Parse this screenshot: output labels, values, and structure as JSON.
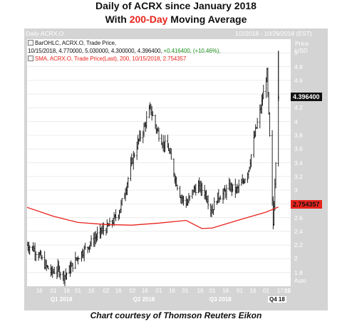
{
  "title_line1": "Daily of ACRX since January 2018",
  "title_line2_pre": "With ",
  "title_line2_accent": "200-Day",
  "title_line2_post": " Moving Average",
  "header_left": "Daily ACRX.O",
  "header_right": "1/2/2018 - 10/29/2018 (EST)",
  "legend": {
    "bar_line": "BarOHLC, ACRX.O, Trade Price,",
    "bar_values": "10/15/2018, 4.770000, 5.030000, 4.300000, 4.396400,",
    "bar_change": "+0.416400, (+10.46%),",
    "sma_line": "SMA, ACRX.O, Trade Price(Last), 200, 10/15/2018, 2.754357"
  },
  "price_unit": [
    "Price",
    "USD"
  ],
  "last_price_tag": "4.396400",
  "sma_tag": "2.754357",
  "auto_label": "Auto",
  "footer": "Chart courtesy of Thomson Reuters Eikon",
  "colors": {
    "accent": "#e8231c",
    "frame": "#d4d4d4",
    "sma": "#e8231c",
    "bars": "#111111"
  },
  "chart_data": {
    "type": "line",
    "series": [
      {
        "name": "BarOHLC, ACRX.O, Trade Price",
        "x": [
          "2018-01-02",
          "2018-01-09",
          "2018-01-16",
          "2018-01-23",
          "2018-01-30",
          "2018-02-06",
          "2018-02-13",
          "2018-02-20",
          "2018-02-27",
          "2018-03-06",
          "2018-03-13",
          "2018-03-20",
          "2018-03-27",
          "2018-04-03",
          "2018-04-10",
          "2018-04-17",
          "2018-04-24",
          "2018-05-01",
          "2018-05-08",
          "2018-05-15",
          "2018-05-22",
          "2018-05-29",
          "2018-06-05",
          "2018-06-12",
          "2018-06-19",
          "2018-06-26",
          "2018-07-03",
          "2018-07-10",
          "2018-07-17",
          "2018-07-24",
          "2018-07-31",
          "2018-08-07",
          "2018-08-14",
          "2018-08-21",
          "2018-08-28",
          "2018-09-04",
          "2018-09-11",
          "2018-09-18",
          "2018-09-25",
          "2018-10-02",
          "2018-10-09",
          "2018-10-15"
        ],
        "values": [
          2.2,
          2.15,
          2.05,
          1.9,
          1.8,
          1.85,
          1.75,
          1.85,
          2.0,
          2.1,
          2.2,
          2.3,
          2.4,
          2.45,
          2.55,
          2.7,
          3.0,
          3.4,
          3.7,
          3.9,
          4.2,
          3.9,
          3.7,
          3.6,
          3.2,
          2.9,
          2.8,
          3.0,
          3.05,
          2.95,
          2.7,
          2.9,
          2.95,
          3.05,
          3.0,
          3.1,
          3.3,
          3.8,
          4.2,
          4.7,
          2.5,
          4.3964
        ]
      },
      {
        "name": "SMA, ACRX.O, Trade Price(Last), 200",
        "x": [
          "2018-01-02",
          "2018-02-01",
          "2018-03-01",
          "2018-04-02",
          "2018-05-01",
          "2018-06-01",
          "2018-07-02",
          "2018-07-20",
          "2018-08-01",
          "2018-09-04",
          "2018-10-01",
          "2018-10-15"
        ],
        "values": [
          2.75,
          2.62,
          2.53,
          2.5,
          2.49,
          2.52,
          2.56,
          2.44,
          2.45,
          2.58,
          2.68,
          2.754357
        ]
      }
    ],
    "yticks": [
      1.8,
      2,
      2.2,
      2.4,
      2.6,
      2.8,
      3,
      3.2,
      3.4,
      3.6,
      3.8,
      4,
      4.2,
      4.4,
      4.6,
      4.8,
      5
    ],
    "ytick_labels": [
      "1.8",
      "2",
      "2.2",
      "2.4",
      "2.6",
      "2.8",
      "3",
      "3.2",
      "3.4",
      "3.6",
      "3.8",
      "4",
      "4.2",
      "4.4",
      "4.6",
      "4.8",
      "5"
    ],
    "xtick_labels": [
      "16",
      "01",
      "16",
      "01",
      "16",
      "02",
      "16",
      "02",
      "16",
      "01",
      "16",
      "01",
      "18",
      "01",
      "16",
      "01",
      "16",
      "01",
      "17",
      "01",
      "16"
    ],
    "quarter_labels": [
      "Q1 2018",
      "Q2 2018",
      "Q3 2018",
      "Q4 18"
    ],
    "ylim": [
      1.6,
      5.2
    ],
    "grid": true,
    "last_value": 4.3964,
    "sma_last_value": 2.754357
  }
}
